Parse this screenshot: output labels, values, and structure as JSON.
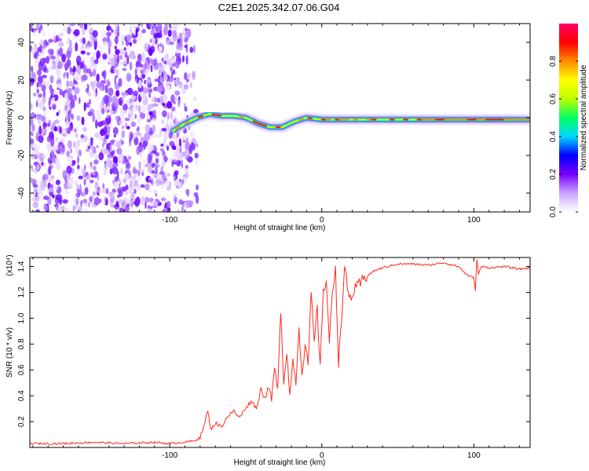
{
  "title": "C2E1.2025.342.07.06.G04",
  "chart_data": [
    {
      "type": "heatmap",
      "name": "spectrogram",
      "xlabel": "Height of straight line (km)",
      "ylabel": "Frequency (Hz)",
      "xlim": [
        -192,
        137
      ],
      "ylim": [
        -50,
        50
      ],
      "xticks": [
        -100,
        0,
        100
      ],
      "xtick_labels": [
        "-100",
        "0",
        "100"
      ],
      "yticks": [
        -40,
        -20,
        0,
        20,
        40
      ],
      "ytick_labels": [
        "-40",
        "-20",
        "0",
        "20",
        "40"
      ],
      "noise_region_x": [
        -192,
        -88
      ],
      "carrier_ridge": {
        "x": [
          -98,
          -90,
          -82,
          -74,
          -66,
          -58,
          -50,
          -42,
          -34,
          -26,
          -18,
          -10,
          0,
          10,
          20,
          40,
          60,
          80,
          100,
          120,
          137
        ],
        "y": [
          -7,
          -3,
          0,
          2,
          1,
          1,
          0,
          -3,
          -5,
          -5,
          -2,
          0,
          -1,
          -1,
          -1,
          -1,
          -1,
          -1,
          -1,
          -1,
          -1
        ]
      },
      "colorbar": {
        "label": "Normalized spectral amplitude",
        "range": [
          0,
          1
        ],
        "ticks": [
          0.0,
          0.2,
          0.4,
          0.6,
          0.8
        ],
        "tick_labels": [
          "0.0",
          "0.2",
          "0.4",
          "0.6",
          "0.8"
        ],
        "colors": [
          "#ffffff",
          "#c9a6ff",
          "#7a00ff",
          "#0000ff",
          "#00d8ff",
          "#00ff60",
          "#bfff00",
          "#ffff00",
          "#ff8c00",
          "#ff0000",
          "#ff0066"
        ]
      }
    },
    {
      "type": "line",
      "name": "snr",
      "xlabel": "Height of straight line (km)",
      "ylabel": "SNR (10 * v/v)",
      "scale_label": "(x10⁴)",
      "xlim": [
        -192,
        137
      ],
      "ylim": [
        0.0,
        1.47
      ],
      "xticks": [
        -100,
        0,
        100
      ],
      "xtick_labels": [
        "-100",
        "0",
        "100"
      ],
      "yticks": [
        0.2,
        0.4,
        0.6,
        0.8,
        1.0,
        1.2,
        1.4
      ],
      "ytick_labels": [
        "0.2",
        "0.4",
        "0.6",
        "0.8",
        "1.0",
        "1.2",
        "1.4"
      ],
      "color": "#ff2a1f",
      "series": {
        "x": [
          -192,
          -170,
          -150,
          -130,
          -110,
          -100,
          -92,
          -84,
          -80,
          -77,
          -75,
          -73,
          -70,
          -66,
          -62,
          -58,
          -54,
          -50,
          -46,
          -43,
          -40,
          -37,
          -35,
          -33,
          -31,
          -29,
          -27,
          -25,
          -23,
          -21,
          -19,
          -17,
          -15,
          -13,
          -11,
          -9,
          -7,
          -5,
          -3,
          -1,
          1,
          3,
          5,
          7,
          9,
          11,
          13,
          15,
          18,
          22,
          26,
          30,
          35,
          40,
          50,
          60,
          70,
          80,
          90,
          95,
          100,
          101,
          102,
          103,
          105,
          110,
          120,
          130,
          137
        ],
        "y": [
          0.03,
          0.03,
          0.04,
          0.03,
          0.04,
          0.03,
          0.04,
          0.05,
          0.08,
          0.18,
          0.29,
          0.14,
          0.19,
          0.16,
          0.24,
          0.28,
          0.23,
          0.31,
          0.36,
          0.3,
          0.45,
          0.38,
          0.48,
          0.37,
          0.62,
          0.44,
          1.07,
          0.5,
          0.75,
          0.4,
          0.68,
          0.5,
          0.92,
          0.57,
          0.8,
          0.64,
          1.18,
          0.81,
          1.06,
          0.62,
          1.24,
          1.28,
          0.82,
          1.18,
          1.41,
          0.65,
          1.02,
          1.38,
          1.15,
          1.22,
          1.28,
          1.33,
          1.37,
          1.39,
          1.42,
          1.42,
          1.41,
          1.43,
          1.4,
          1.34,
          1.31,
          1.22,
          1.46,
          1.34,
          1.4,
          1.39,
          1.4,
          1.38,
          1.39
        ]
      }
    }
  ]
}
